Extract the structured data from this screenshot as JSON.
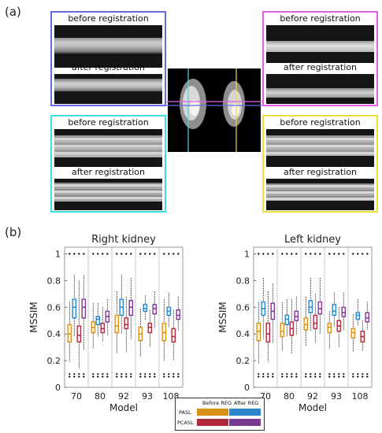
{
  "panel_labels": {
    "a": "(a)",
    "b": "(b)"
  },
  "registration": {
    "boxes": [
      {
        "id": "top-left",
        "color": "#6a6ae0",
        "before": "before registration",
        "after": "after registration"
      },
      {
        "id": "top-right",
        "color": "#e060e0",
        "before": "before registration",
        "after": "after registration"
      },
      {
        "id": "bottom-left",
        "color": "#40dede",
        "before": "before registration",
        "after": "after registration"
      },
      {
        "id": "bottom-right",
        "color": "#e8e23a",
        "before": "before registration",
        "after": "after registration"
      }
    ],
    "center_line_colors": {
      "vertical_left": "#40dede",
      "vertical_right": "#e8e23a",
      "horizontal_top": "#e060e0",
      "horizontal_bottom": "#6a6ae0"
    }
  },
  "chart_data": [
    {
      "type": "box",
      "title": "Right kidney",
      "xlabel": "Model",
      "ylabel": "MSSIM",
      "ylim": [
        0,
        1.05
      ],
      "yticks": [
        "0",
        "0.2",
        "0.4",
        "0.6",
        "0.8",
        "1"
      ],
      "categories": [
        "70",
        "80",
        "92",
        "93",
        "108"
      ],
      "series": [
        {
          "name": "PASL Before REG",
          "color": "#d89018",
          "boxes": [
            {
              "q1": 0.34,
              "median": 0.4,
              "q3": 0.47,
              "whisker_low": 0.19,
              "whisker_high": 0.64
            },
            {
              "q1": 0.41,
              "median": 0.45,
              "q3": 0.49,
              "whisker_low": 0.29,
              "whisker_high": 0.63
            },
            {
              "q1": 0.41,
              "median": 0.46,
              "q3": 0.54,
              "whisker_low": 0.25,
              "whisker_high": 0.72
            },
            {
              "q1": 0.35,
              "median": 0.4,
              "q3": 0.45,
              "whisker_low": 0.23,
              "whisker_high": 0.59
            },
            {
              "q1": 0.35,
              "median": 0.41,
              "q3": 0.48,
              "whisker_low": 0.2,
              "whisker_high": 0.66
            }
          ]
        },
        {
          "name": "PASL After REG",
          "color": "#2a86c8",
          "boxes": [
            {
              "q1": 0.52,
              "median": 0.6,
              "q3": 0.66,
              "whisker_low": 0.38,
              "whisker_high": 0.84
            },
            {
              "q1": 0.47,
              "median": 0.51,
              "q3": 0.53,
              "whisker_low": 0.38,
              "whisker_high": 0.63
            },
            {
              "q1": 0.54,
              "median": 0.6,
              "q3": 0.66,
              "whisker_low": 0.4,
              "whisker_high": 0.84
            },
            {
              "q1": 0.57,
              "median": 0.59,
              "q3": 0.62,
              "whisker_low": 0.5,
              "whisker_high": 0.69
            },
            {
              "q1": 0.54,
              "median": 0.57,
              "q3": 0.6,
              "whisker_low": 0.45,
              "whisker_high": 0.71
            }
          ]
        },
        {
          "name": "PCASL Before REG",
          "color": "#b0283c",
          "boxes": [
            {
              "q1": 0.34,
              "median": 0.39,
              "q3": 0.46,
              "whisker_low": 0.14,
              "whisker_high": 0.8
            },
            {
              "q1": 0.41,
              "median": 0.44,
              "q3": 0.48,
              "whisker_low": 0.34,
              "whisker_high": 0.6
            },
            {
              "q1": 0.44,
              "median": 0.47,
              "q3": 0.52,
              "whisker_low": 0.26,
              "whisker_high": 0.68
            },
            {
              "q1": 0.41,
              "median": 0.45,
              "q3": 0.48,
              "whisker_low": 0.3,
              "whisker_high": 0.58
            },
            {
              "q1": 0.34,
              "median": 0.38,
              "q3": 0.44,
              "whisker_low": 0.2,
              "whisker_high": 0.58
            }
          ]
        },
        {
          "name": "PCASL After REG",
          "color": "#7a3a92",
          "boxes": [
            {
              "q1": 0.52,
              "median": 0.6,
              "q3": 0.66,
              "whisker_low": 0.28,
              "whisker_high": 0.84
            },
            {
              "q1": 0.49,
              "median": 0.53,
              "q3": 0.57,
              "whisker_low": 0.39,
              "whisker_high": 0.66
            },
            {
              "q1": 0.54,
              "median": 0.6,
              "q3": 0.65,
              "whisker_low": 0.36,
              "whisker_high": 0.82
            },
            {
              "q1": 0.55,
              "median": 0.59,
              "q3": 0.62,
              "whisker_low": 0.44,
              "whisker_high": 0.72
            },
            {
              "q1": 0.51,
              "median": 0.54,
              "q3": 0.58,
              "whisker_low": 0.42,
              "whisker_high": 0.68
            }
          ]
        }
      ]
    },
    {
      "type": "box",
      "title": "Left kidney",
      "xlabel": "Model",
      "ylabel": "MSSIM",
      "ylim": [
        0,
        1.05
      ],
      "yticks": [
        "0",
        "0.2",
        "0.4",
        "0.6",
        "0.8",
        "1"
      ],
      "categories": [
        "70",
        "80",
        "92",
        "93",
        "108"
      ],
      "series": [
        {
          "name": "PASL Before REG",
          "color": "#d89018",
          "boxes": [
            {
              "q1": 0.35,
              "median": 0.42,
              "q3": 0.48,
              "whisker_low": 0.18,
              "whisker_high": 0.64
            },
            {
              "q1": 0.38,
              "median": 0.42,
              "q3": 0.48,
              "whisker_low": 0.27,
              "whisker_high": 0.64
            },
            {
              "q1": 0.43,
              "median": 0.47,
              "q3": 0.52,
              "whisker_low": 0.31,
              "whisker_high": 0.68
            },
            {
              "q1": 0.41,
              "median": 0.45,
              "q3": 0.48,
              "whisker_low": 0.29,
              "whisker_high": 0.57
            },
            {
              "q1": 0.37,
              "median": 0.41,
              "q3": 0.44,
              "whisker_low": 0.27,
              "whisker_high": 0.55
            }
          ]
        },
        {
          "name": "PASL After REG",
          "color": "#2a86c8",
          "boxes": [
            {
              "q1": 0.54,
              "median": 0.59,
              "q3": 0.64,
              "whisker_low": 0.36,
              "whisker_high": 0.82
            },
            {
              "q1": 0.47,
              "median": 0.51,
              "q3": 0.54,
              "whisker_low": 0.38,
              "whisker_high": 0.66
            },
            {
              "q1": 0.56,
              "median": 0.6,
              "q3": 0.65,
              "whisker_low": 0.42,
              "whisker_high": 0.82
            },
            {
              "q1": 0.54,
              "median": 0.57,
              "q3": 0.62,
              "whisker_low": 0.45,
              "whisker_high": 0.71
            },
            {
              "q1": 0.51,
              "median": 0.54,
              "q3": 0.56,
              "whisker_low": 0.46,
              "whisker_high": 0.66
            }
          ]
        },
        {
          "name": "PCASL Before REG",
          "color": "#b0283c",
          "boxes": [
            {
              "q1": 0.34,
              "median": 0.4,
              "q3": 0.48,
              "whisker_low": 0.19,
              "whisker_high": 0.72
            },
            {
              "q1": 0.39,
              "median": 0.44,
              "q3": 0.49,
              "whisker_low": 0.25,
              "whisker_high": 0.66
            },
            {
              "q1": 0.44,
              "median": 0.48,
              "q3": 0.54,
              "whisker_low": 0.33,
              "whisker_high": 0.7
            },
            {
              "q1": 0.42,
              "median": 0.46,
              "q3": 0.5,
              "whisker_low": 0.3,
              "whisker_high": 0.6
            },
            {
              "q1": 0.34,
              "median": 0.38,
              "q3": 0.42,
              "whisker_low": 0.27,
              "whisker_high": 0.5
            }
          ]
        },
        {
          "name": "PCASL After REG",
          "color": "#7a3a92",
          "boxes": [
            {
              "q1": 0.51,
              "median": 0.57,
              "q3": 0.63,
              "whisker_low": 0.33,
              "whisker_high": 0.78
            },
            {
              "q1": 0.5,
              "median": 0.53,
              "q3": 0.57,
              "whisker_low": 0.39,
              "whisker_high": 0.68
            },
            {
              "q1": 0.55,
              "median": 0.59,
              "q3": 0.64,
              "whisker_low": 0.4,
              "whisker_high": 0.82
            },
            {
              "q1": 0.53,
              "median": 0.56,
              "q3": 0.6,
              "whisker_low": 0.43,
              "whisker_high": 0.71
            },
            {
              "q1": 0.49,
              "median": 0.52,
              "q3": 0.56,
              "whisker_low": 0.43,
              "whisker_high": 0.64
            }
          ]
        }
      ]
    }
  ],
  "legend": {
    "col_before": "Before REG",
    "col_after": "After REG",
    "row_pasl": "PASL",
    "row_pcasl": "PCASL",
    "pasl_before_color": "#d89018",
    "pasl_after_color": "#2a86c8",
    "pcasl_before_color": "#b0283c",
    "pcasl_after_color": "#7a3a92"
  }
}
